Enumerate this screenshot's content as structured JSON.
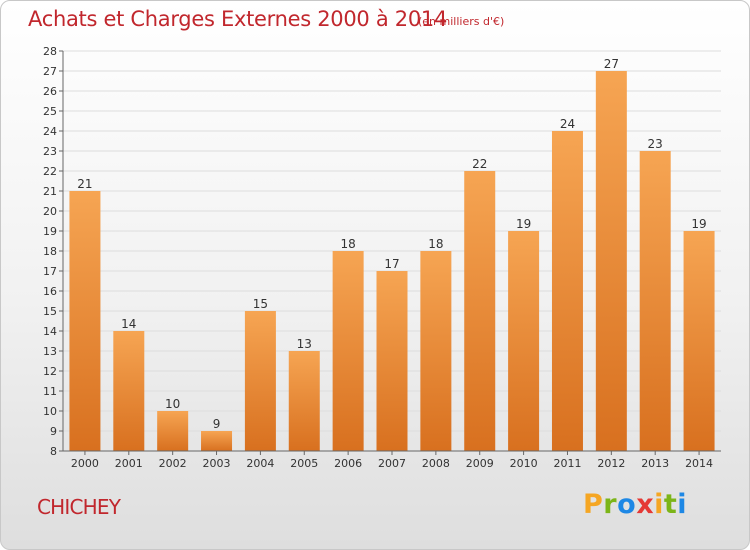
{
  "title": "Achats et Charges Externes 2000 à 2014",
  "subtitle": "(en milliers d'€)",
  "commune": "CHICHEY",
  "brand": {
    "letters": [
      "P",
      "r",
      "o",
      "x",
      "i",
      "t",
      "i"
    ],
    "colors": [
      "#f5a623",
      "#7cb518",
      "#1e88e5",
      "#e53935",
      "#f5a623",
      "#7cb518",
      "#1e88e5"
    ]
  },
  "colors": {
    "bar_top": "#f6a553",
    "bar_bottom": "#d8701f",
    "title": "#c1272d",
    "grid": "#dddddd",
    "axis": "#666666"
  },
  "chart_data": {
    "type": "bar",
    "title": "Achats et Charges Externes 2000 à 2014",
    "subtitle": "(en milliers d'€)",
    "categories": [
      "2000",
      "2001",
      "2002",
      "2003",
      "2004",
      "2005",
      "2006",
      "2007",
      "2008",
      "2009",
      "2010",
      "2011",
      "2012",
      "2013",
      "2014"
    ],
    "values": [
      21,
      14,
      10,
      9,
      15,
      13,
      18,
      17,
      18,
      22,
      19,
      24,
      27,
      23,
      19
    ],
    "ylim": [
      8,
      28
    ],
    "yticks": [
      8,
      9,
      10,
      11,
      12,
      13,
      14,
      15,
      16,
      17,
      18,
      19,
      20,
      21,
      22,
      23,
      24,
      25,
      26,
      27,
      28
    ],
    "grid": true,
    "data_labels": true
  }
}
